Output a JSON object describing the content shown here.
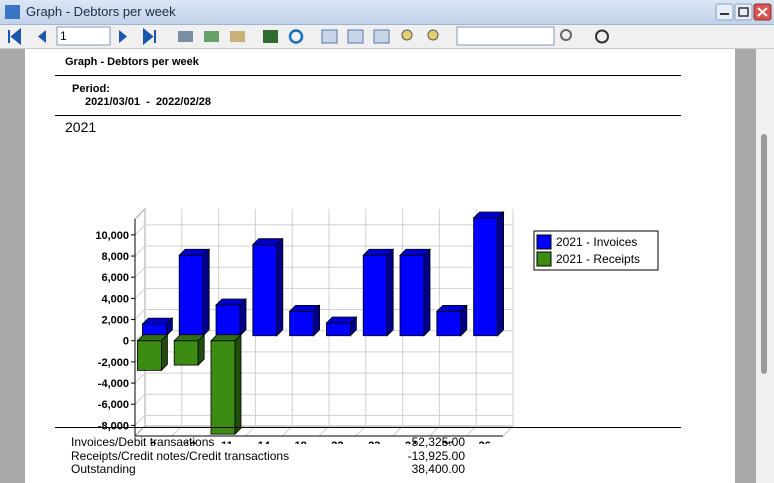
{
  "window": {
    "title": "Graph - Debtors per week"
  },
  "toolbar": {
    "page_input": "1"
  },
  "report": {
    "title": "Graph - Debtors per week",
    "period_label": "Period:",
    "period": "2021/03/01  -  2022/02/28"
  },
  "chart_data": {
    "type": "bar3d",
    "title": "2021",
    "categories": [
      "9",
      "10",
      "11",
      "14",
      "18",
      "22",
      "23",
      "24",
      "25",
      "26"
    ],
    "series": [
      {
        "name": "2021 - Invoices",
        "color": "#0000ff",
        "values": [
          1100,
          7600,
          2900,
          8600,
          2300,
          1200,
          7600,
          7600,
          2300,
          11125
        ]
      },
      {
        "name": "2021 - Receipts",
        "color": "#3c8c14",
        "values": [
          -2800,
          -2300,
          -8825,
          null,
          null,
          null,
          null,
          null,
          null,
          null
        ]
      }
    ],
    "ylim": [
      -9000,
      11500
    ],
    "yticks": [
      {
        "value": -8000,
        "label": "-8,000"
      },
      {
        "value": -6000,
        "label": "-6,000"
      },
      {
        "value": -4000,
        "label": "-4,000"
      },
      {
        "value": -2000,
        "label": "-2,000"
      },
      0,
      {
        "value": 2000,
        "label": "2,000"
      },
      {
        "value": 4000,
        "label": "4,000"
      },
      {
        "value": 6000,
        "label": "6,000"
      },
      {
        "value": 8000,
        "label": "8,000"
      },
      {
        "value": 10000,
        "label": "10,000"
      }
    ],
    "grid": true,
    "legend": "right"
  },
  "summary": {
    "rows": [
      [
        "Invoices/Debit transactions",
        "52,325.00"
      ],
      [
        "Receipts/Credit notes/Credit transactions",
        "-13,925.00"
      ],
      [
        "Outstanding",
        "38,400.00"
      ]
    ]
  }
}
